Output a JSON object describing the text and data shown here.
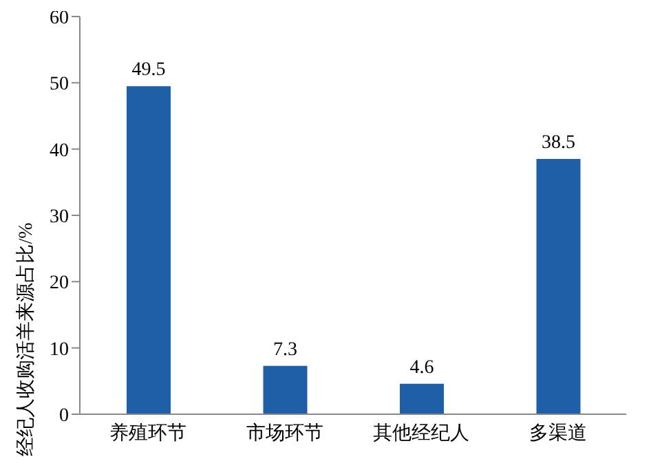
{
  "chart_data": {
    "type": "bar",
    "ylabel": "经纪人收购活羊来源占比/%",
    "categories": [
      "养殖环节",
      "市场环节",
      "其他经纪人",
      "多渠道"
    ],
    "values": [
      49.5,
      7.3,
      4.6,
      38.5
    ],
    "color": "#1f5fa8",
    "ylim": [
      0,
      60
    ],
    "yticks": [
      0,
      10,
      20,
      30,
      40,
      50,
      60
    ],
    "data_labels": true,
    "grid": false,
    "legend": false
  }
}
